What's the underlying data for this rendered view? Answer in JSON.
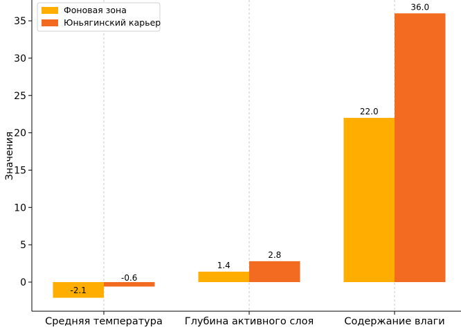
{
  "chart_data": {
    "type": "bar",
    "categories": [
      "Средняя температура",
      "Глубина активного слоя",
      "Содержание влаги"
    ],
    "series": [
      {
        "name": "Фоновая зона",
        "values": [
          -2.1,
          1.4,
          22.0
        ],
        "labels": [
          "-2.1",
          "1.4",
          "22.0"
        ],
        "color": "#FFAE00"
      },
      {
        "name": "Юньягинский карьер",
        "values": [
          -0.6,
          2.8,
          36.0
        ],
        "labels": [
          "-0.6",
          "2.8",
          "36.0"
        ],
        "color": "#F26B21"
      }
    ],
    "title": "",
    "xlabel": "",
    "ylabel": "Значения",
    "ylim": [
      -2.1,
      36.0
    ],
    "yticks": [
      0,
      5,
      10,
      15,
      20,
      25,
      30,
      35
    ],
    "ytick_labels": [
      "0",
      "5",
      "10",
      "15",
      "20",
      "25",
      "30",
      "35"
    ],
    "grid": "x-dashed",
    "legend_position": "top-left"
  }
}
